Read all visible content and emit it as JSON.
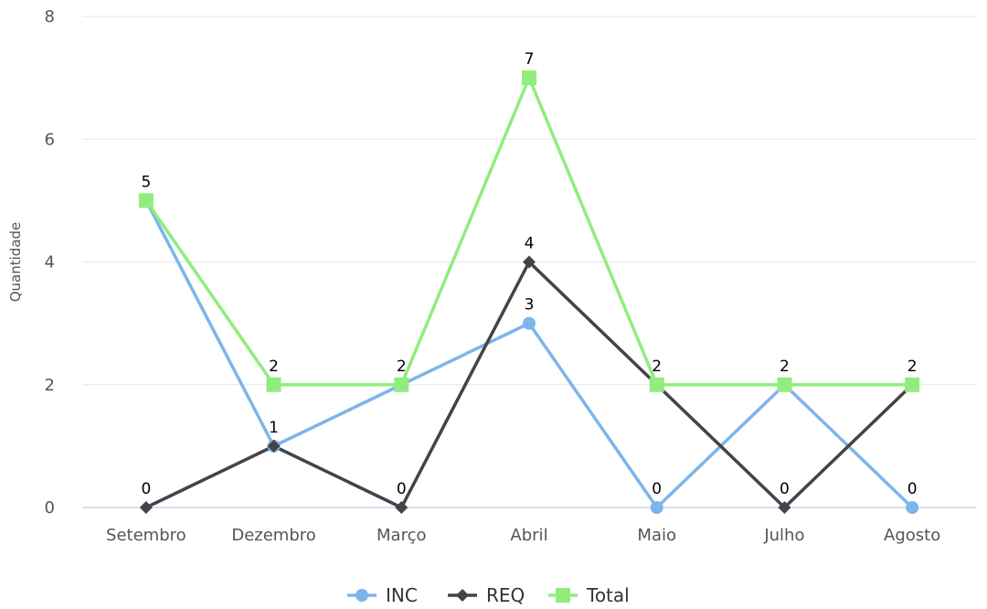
{
  "chart_data": {
    "type": "line",
    "title": "",
    "xlabel": "",
    "ylabel": "Quantidade",
    "categories": [
      "Setembro",
      "Dezembro",
      "Março",
      "Abril",
      "Maio",
      "Julho",
      "Agosto"
    ],
    "ylim": [
      0,
      8
    ],
    "yticks": [
      0,
      2,
      4,
      6,
      8
    ],
    "grid": true,
    "legend": "bottom-center",
    "series": [
      {
        "name": "INC",
        "values": [
          5,
          1,
          2,
          3,
          0,
          2,
          0
        ],
        "color": "#7cb5ec",
        "marker": "circle",
        "labels": false
      },
      {
        "name": "REQ",
        "values": [
          0,
          1,
          0,
          4,
          2,
          0,
          2
        ],
        "color": "#434348",
        "marker": "diamond",
        "labels": true
      },
      {
        "name": "Total",
        "values": [
          5,
          2,
          2,
          7,
          2,
          2,
          2
        ],
        "color": "#90ed7d",
        "marker": "square",
        "labels": true
      }
    ],
    "data_labels": [
      {
        "category": "Setembro",
        "series": "REQ",
        "value": "0"
      },
      {
        "category": "Setembro",
        "series": "Total",
        "value": "5"
      },
      {
        "category": "Dezembro",
        "series": "REQ",
        "value": "1"
      },
      {
        "category": "Dezembro",
        "series": "Total",
        "value": "2"
      },
      {
        "category": "Março",
        "series": "REQ",
        "value": "0"
      },
      {
        "category": "Março",
        "series": "Total",
        "value": "2"
      },
      {
        "category": "Abril",
        "series": "INC",
        "value": "3"
      },
      {
        "category": "Abril",
        "series": "REQ",
        "value": "4"
      },
      {
        "category": "Abril",
        "series": "Total",
        "value": "7"
      },
      {
        "category": "Maio",
        "series": "INC",
        "value": "0"
      },
      {
        "category": "Maio",
        "series": "Total",
        "value": "2"
      },
      {
        "category": "Julho",
        "series": "REQ",
        "value": "0"
      },
      {
        "category": "Julho",
        "series": "Total",
        "value": "2"
      },
      {
        "category": "Agosto",
        "series": "INC",
        "value": "0"
      },
      {
        "category": "Agosto",
        "series": "Total",
        "value": "2"
      }
    ]
  }
}
